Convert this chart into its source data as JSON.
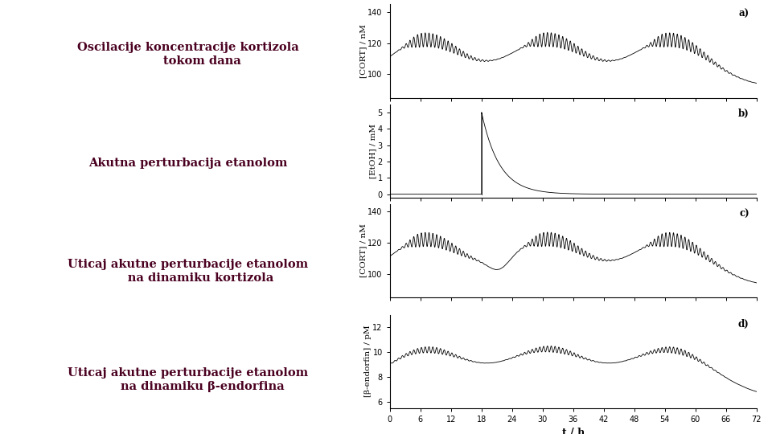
{
  "bg_color_left": "#c8f0d0",
  "text_color": "#4a0020",
  "line_color": "#000000",
  "labels_left": [
    "Oscilacije koncentracije kortizola\n       tokom dana",
    "Akutna perturbacija etanolom",
    "Uticaj akutne perturbacije etanolom\n      na dinamiku kortizola",
    "Uticaj akutne perturbacije etanolom\n       na dinamiku β-endorfina"
  ],
  "panel_labels": [
    "a)",
    "b)",
    "c)",
    "d)"
  ],
  "ylabels": [
    "[CORT] / nM",
    "[EtOH] / mM",
    "[CORT] / nM",
    "[β-endorfin] / pM"
  ],
  "xlabel": "t / h",
  "xticks": [
    0,
    6,
    12,
    18,
    24,
    30,
    36,
    42,
    48,
    54,
    60,
    66,
    72
  ],
  "plot_a_ylim": [
    85,
    145
  ],
  "plot_a_yticks": [
    100,
    120,
    140
  ],
  "plot_b_ylim": [
    -0.2,
    5.5
  ],
  "plot_b_yticks": [
    0,
    1,
    2,
    3,
    4,
    5
  ],
  "plot_c_ylim": [
    85,
    145
  ],
  "plot_c_yticks": [
    100,
    120,
    140
  ],
  "plot_d_ylim": [
    5.5,
    13
  ],
  "plot_d_yticks": [
    6,
    8,
    10,
    12
  ]
}
